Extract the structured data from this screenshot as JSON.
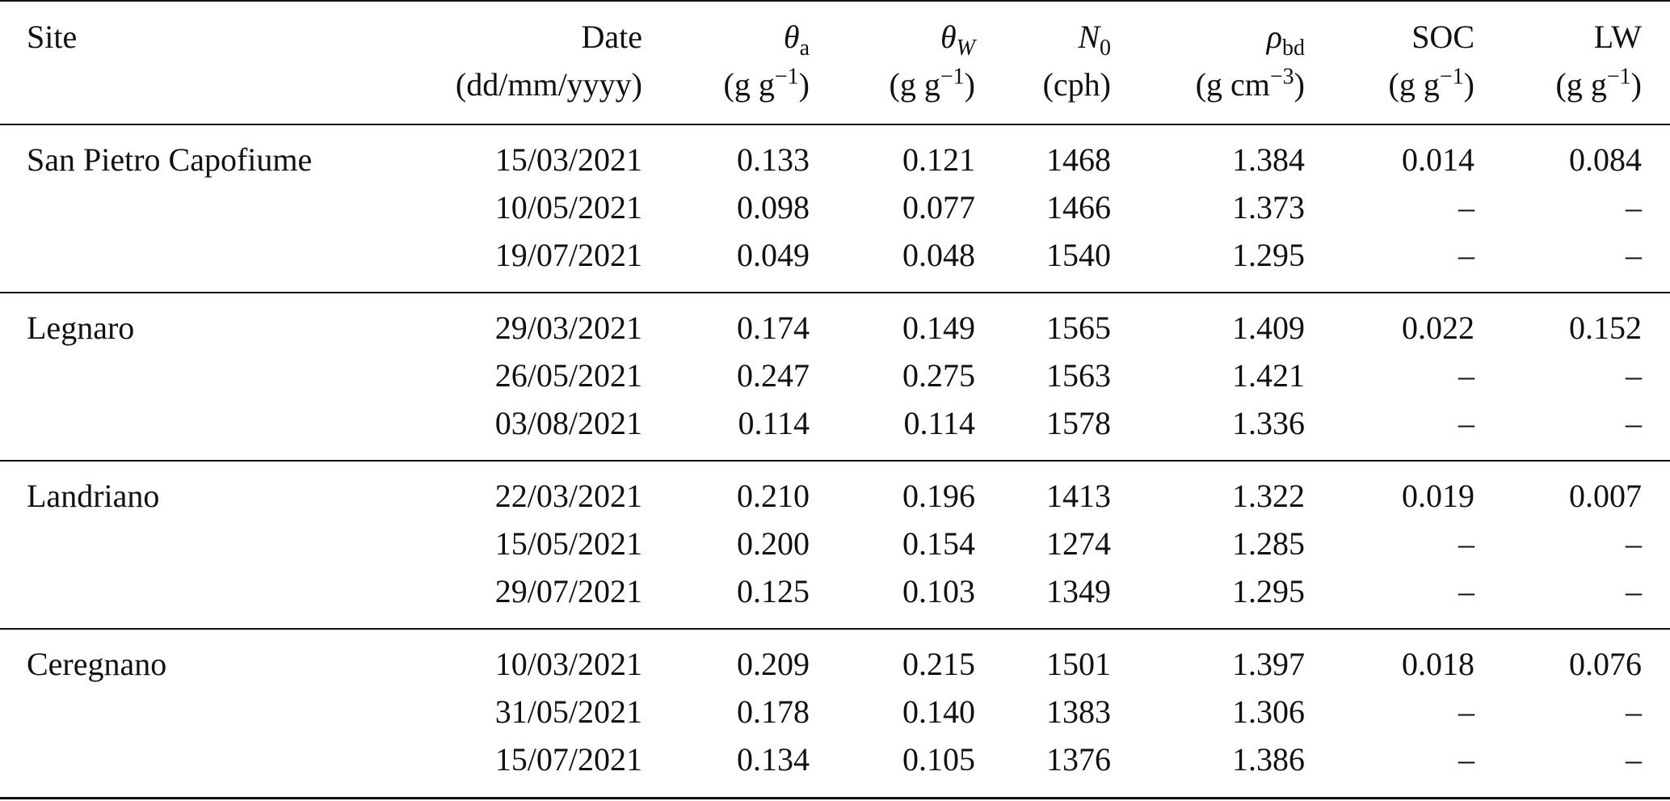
{
  "table": {
    "columns": [
      {
        "name": "Site"
      },
      {
        "name": "Date",
        "unit": [
          {
            "text": "(dd/mm/yyyy)"
          }
        ]
      },
      {
        "name": "θ",
        "name_sub": "a",
        "unit": [
          {
            "text": "(g g"
          },
          {
            "sup": "−1"
          },
          {
            "text": ")"
          }
        ]
      },
      {
        "name": "θ",
        "name_sub": "W",
        "unit": [
          {
            "text": "(g g"
          },
          {
            "sup": "−1"
          },
          {
            "text": ")"
          }
        ]
      },
      {
        "name": "N",
        "name_sub": "0",
        "unit": [
          {
            "text": "(cph)"
          }
        ]
      },
      {
        "name": "ρ",
        "name_sub": "bd",
        "unit": [
          {
            "text": "(g cm"
          },
          {
            "sup": "−3"
          },
          {
            "text": ")"
          }
        ]
      },
      {
        "name": "SOC",
        "unit": [
          {
            "text": "(g g"
          },
          {
            "sup": "−1"
          },
          {
            "text": ")"
          }
        ]
      },
      {
        "name": "LW",
        "unit": [
          {
            "text": "(g g"
          },
          {
            "sup": "−1"
          },
          {
            "text": ")"
          }
        ]
      }
    ],
    "groups": [
      {
        "site": "San Pietro Capofiume",
        "rows": [
          [
            "15/03/2021",
            "0.133",
            "0.121",
            "1468",
            "1.384",
            "0.014",
            "0.084"
          ],
          [
            "10/05/2021",
            "0.098",
            "0.077",
            "1466",
            "1.373",
            "–",
            "–"
          ],
          [
            "19/07/2021",
            "0.049",
            "0.048",
            "1540",
            "1.295",
            "–",
            "–"
          ]
        ]
      },
      {
        "site": "Legnaro",
        "rows": [
          [
            "29/03/2021",
            "0.174",
            "0.149",
            "1565",
            "1.409",
            "0.022",
            "0.152"
          ],
          [
            "26/05/2021",
            "0.247",
            "0.275",
            "1563",
            "1.421",
            "–",
            "–"
          ],
          [
            "03/08/2021",
            "0.114",
            "0.114",
            "1578",
            "1.336",
            "–",
            "–"
          ]
        ]
      },
      {
        "site": "Landriano",
        "rows": [
          [
            "22/03/2021",
            "0.210",
            "0.196",
            "1413",
            "1.322",
            "0.019",
            "0.007"
          ],
          [
            "15/05/2021",
            "0.200",
            "0.154",
            "1274",
            "1.285",
            "–",
            "–"
          ],
          [
            "29/07/2021",
            "0.125",
            "0.103",
            "1349",
            "1.295",
            "–",
            "–"
          ]
        ]
      },
      {
        "site": "Ceregnano",
        "rows": [
          [
            "10/03/2021",
            "0.209",
            "0.215",
            "1501",
            "1.397",
            "0.018",
            "0.076"
          ],
          [
            "31/05/2021",
            "0.178",
            "0.140",
            "1383",
            "1.306",
            "–",
            "–"
          ],
          [
            "15/07/2021",
            "0.134",
            "0.105",
            "1376",
            "1.386",
            "–",
            "–"
          ]
        ]
      }
    ]
  }
}
